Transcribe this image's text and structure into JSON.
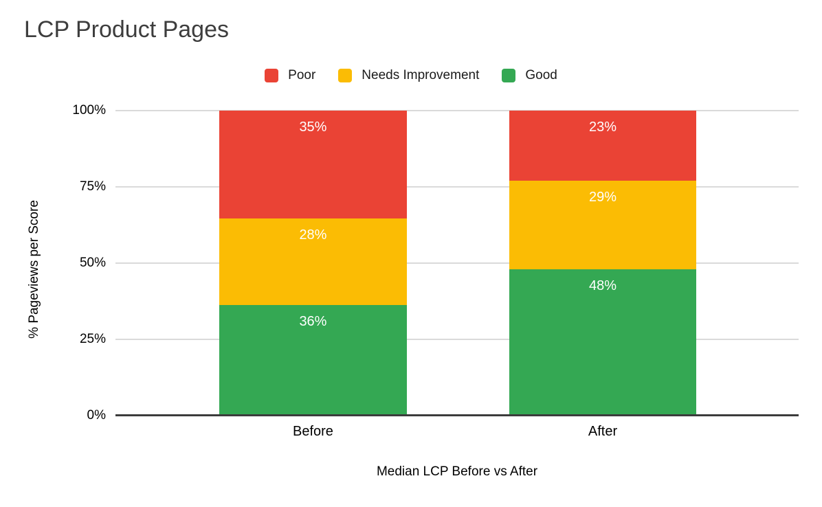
{
  "chart_data": {
    "type": "bar",
    "subtype": "stacked-100-percent",
    "title": "LCP Product Pages",
    "categories": [
      "Before",
      "After"
    ],
    "series": [
      {
        "name": "Poor",
        "color": "#EA4335",
        "values": [
          35,
          23
        ]
      },
      {
        "name": "Needs Improvement",
        "color": "#FBBC04",
        "values": [
          28,
          29
        ]
      },
      {
        "name": "Good",
        "color": "#34A853",
        "values": [
          36,
          48
        ]
      }
    ],
    "data_labels": [
      "35%",
      "28%",
      "36%",
      "23%",
      "29%",
      "48%"
    ],
    "xlabel": "Median LCP Before vs After",
    "ylabel": "% Pageviews per Score",
    "y_ticks": [
      {
        "value": 100,
        "label": "100%"
      },
      {
        "value": 75,
        "label": "75%"
      },
      {
        "value": 50,
        "label": "50%"
      },
      {
        "value": 25,
        "label": "25%"
      },
      {
        "value": 0,
        "label": "0%"
      }
    ],
    "ylim": [
      0,
      100
    ],
    "grid": true,
    "legend_position": "top",
    "label_suffix": "%"
  }
}
